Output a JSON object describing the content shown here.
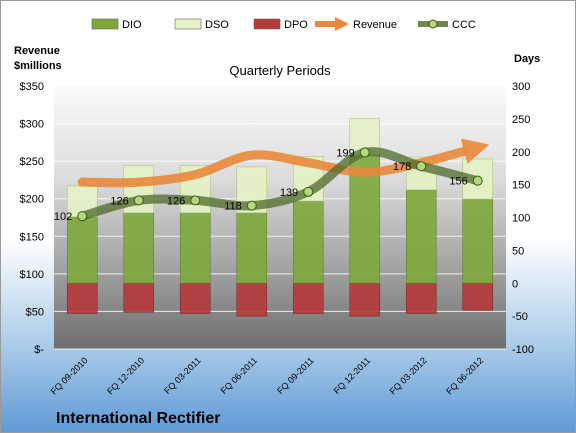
{
  "company": "International Rectifier",
  "chart_data": {
    "type": "bar",
    "title": "Quarterly Periods",
    "left_axis_label": [
      "Revenue",
      "$millions"
    ],
    "right_axis_label": "Days",
    "categories": [
      "FQ 09-2010",
      "FQ 12-2010",
      "FQ 03-2011",
      "FQ 06-2011",
      "FQ 09-2011",
      "FQ 12-2011",
      "FQ 03-2012",
      "FQ 06-2012"
    ],
    "left_axis": {
      "min": 0,
      "max": 350,
      "step": 50,
      "tick_labels": [
        "$-",
        "$50",
        "$100",
        "$150",
        "$200",
        "$250",
        "$300",
        "$350"
      ]
    },
    "right_axis": {
      "min": -100,
      "max": 300,
      "step": 50,
      "tick_labels": [
        "-100",
        "-50",
        "0",
        "50",
        "100",
        "150",
        "200",
        "250",
        "300"
      ]
    },
    "legend": {
      "position": "top",
      "entries": [
        "DIO",
        "DSO",
        "DPO",
        "Revenue",
        "CCC"
      ]
    },
    "series": [
      {
        "name": "DIO",
        "axis": "right",
        "kind": "bar",
        "color": "#7fa83c",
        "values": [
          101,
          107,
          107,
          107,
          125,
          195,
          142,
          128
        ]
      },
      {
        "name": "DSO",
        "axis": "right",
        "kind": "bar",
        "color": "#e4f2c6",
        "values": [
          47,
          72,
          72,
          70,
          68,
          56,
          50,
          61
        ]
      },
      {
        "name": "DPO",
        "axis": "right",
        "kind": "bar",
        "color": "#b63a3a",
        "values": [
          -46,
          -44,
          -46,
          -50,
          -46,
          -50,
          -46,
          -41
        ]
      },
      {
        "name": "Revenue",
        "axis": "left",
        "kind": "line",
        "color": "#e8883a",
        "values": [
          222,
          222,
          232,
          258,
          248,
          235,
          248,
          268
        ]
      },
      {
        "name": "CCC",
        "axis": "right",
        "kind": "line",
        "color": "#4e6a2a",
        "values": [
          102,
          126,
          126,
          118,
          139,
          199,
          178,
          156
        ],
        "data_labels": [
          "102",
          "126",
          "126",
          "118",
          "139",
          "199",
          "178",
          "156"
        ]
      }
    ],
    "grid": true
  }
}
